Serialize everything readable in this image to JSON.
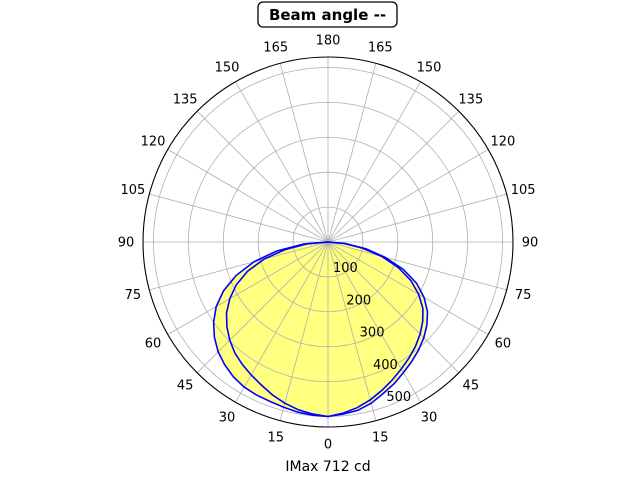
{
  "chart_data": {
    "type": "polar-line",
    "title": "Beam angle --",
    "xlabel": "IMax 712 cd",
    "angle_tick_labels": [
      "0",
      "15",
      "30",
      "45",
      "60",
      "75",
      "90",
      "105",
      "120",
      "135",
      "150",
      "165",
      "180",
      "165",
      "150",
      "135",
      "120",
      "105",
      "90",
      "75",
      "60",
      "45",
      "30",
      "15"
    ],
    "radial_ticks": [
      100,
      200,
      300,
      400,
      500
    ],
    "radial_tick_labels": [
      "100",
      "200",
      "300",
      "400",
      "500"
    ],
    "rlim": [
      0,
      530
    ],
    "zero_direction": "bottom",
    "grid": true,
    "colors": {
      "curve": "#0000ff",
      "fill": "#ffff80",
      "grid": "#b0b0b0"
    },
    "series": [
      {
        "angles_deg": [
          0,
          5,
          10,
          15,
          20,
          25,
          30,
          35,
          40,
          45,
          50,
          55,
          60,
          65,
          70,
          75,
          80,
          85,
          90
        ],
        "left_cd": [
          500,
          498,
          495,
          490,
          486,
          484,
          480,
          472,
          460,
          445,
          425,
          400,
          370,
          330,
          280,
          220,
          150,
          70,
          0
        ],
        "right_cd": [
          500,
          495,
          490,
          478,
          462,
          448,
          432,
          418,
          404,
          388,
          370,
          348,
          318,
          280,
          230,
          170,
          110,
          50,
          0
        ]
      },
      {
        "angles_deg": [
          0,
          5,
          10,
          15,
          20,
          25,
          30,
          35,
          40,
          45,
          50,
          55,
          60,
          65,
          70,
          75,
          80,
          85,
          90
        ],
        "left_cd": [
          500,
          495,
          488,
          478,
          466,
          452,
          440,
          428,
          415,
          398,
          378,
          355,
          325,
          290,
          245,
          190,
          125,
          60,
          0
        ],
        "right_cd": [
          500,
          492,
          482,
          468,
          452,
          436,
          420,
          405,
          390,
          373,
          354,
          332,
          300,
          262,
          215,
          160,
          100,
          45,
          0
        ]
      }
    ]
  }
}
